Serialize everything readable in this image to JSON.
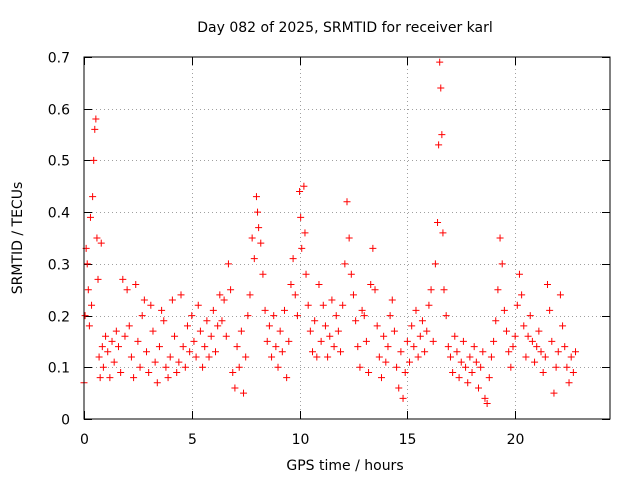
{
  "chart_data": {
    "type": "scatter",
    "title": "Day 082 of 2025, SRMTID for receiver karl",
    "xlabel": "GPS time / hours",
    "ylabel": "SRMTID / TECUs",
    "xlim": [
      0,
      24.4
    ],
    "ylim": [
      0,
      0.7
    ],
    "xticks": [
      0,
      5,
      10,
      15,
      20
    ],
    "yticks": [
      0,
      0.1,
      0.2,
      0.3,
      0.4,
      0.5,
      0.6,
      0.7
    ],
    "xtick_labels": [
      "0",
      "5",
      "10",
      "15",
      "20"
    ],
    "ytick_labels": [
      "0",
      "0.1",
      "0.2",
      "0.3",
      "0.4",
      "0.5",
      "0.6",
      "0.7"
    ],
    "grid": true,
    "marker": "+",
    "color": "#ff0000",
    "series": [
      {
        "name": "SRMTID",
        "points": [
          [
            0.0,
            0.07
          ],
          [
            0.05,
            0.2
          ],
          [
            0.1,
            0.33
          ],
          [
            0.15,
            0.3
          ],
          [
            0.2,
            0.25
          ],
          [
            0.25,
            0.18
          ],
          [
            0.3,
            0.39
          ],
          [
            0.35,
            0.22
          ],
          [
            0.4,
            0.43
          ],
          [
            0.45,
            0.5
          ],
          [
            0.5,
            0.56
          ],
          [
            0.55,
            0.58
          ],
          [
            0.6,
            0.35
          ],
          [
            0.65,
            0.27
          ],
          [
            0.7,
            0.12
          ],
          [
            0.75,
            0.08
          ],
          [
            0.8,
            0.34
          ],
          [
            0.85,
            0.14
          ],
          [
            0.9,
            0.1
          ],
          [
            1.0,
            0.16
          ],
          [
            1.1,
            0.13
          ],
          [
            1.2,
            0.08
          ],
          [
            1.3,
            0.15
          ],
          [
            1.4,
            0.11
          ],
          [
            1.5,
            0.17
          ],
          [
            1.6,
            0.14
          ],
          [
            1.7,
            0.09
          ],
          [
            1.8,
            0.27
          ],
          [
            1.9,
            0.16
          ],
          [
            2.0,
            0.25
          ],
          [
            2.1,
            0.18
          ],
          [
            2.2,
            0.12
          ],
          [
            2.3,
            0.08
          ],
          [
            2.4,
            0.26
          ],
          [
            2.5,
            0.15
          ],
          [
            2.6,
            0.1
          ],
          [
            2.7,
            0.2
          ],
          [
            2.8,
            0.23
          ],
          [
            2.9,
            0.13
          ],
          [
            3.0,
            0.09
          ],
          [
            3.1,
            0.22
          ],
          [
            3.2,
            0.17
          ],
          [
            3.3,
            0.11
          ],
          [
            3.4,
            0.07
          ],
          [
            3.5,
            0.14
          ],
          [
            3.6,
            0.21
          ],
          [
            3.7,
            0.19
          ],
          [
            3.8,
            0.1
          ],
          [
            3.9,
            0.08
          ],
          [
            4.0,
            0.12
          ],
          [
            4.1,
            0.23
          ],
          [
            4.2,
            0.16
          ],
          [
            4.3,
            0.09
          ],
          [
            4.4,
            0.11
          ],
          [
            4.5,
            0.24
          ],
          [
            4.6,
            0.14
          ],
          [
            4.7,
            0.1
          ],
          [
            4.8,
            0.18
          ],
          [
            4.9,
            0.13
          ],
          [
            5.0,
            0.2
          ],
          [
            5.1,
            0.15
          ],
          [
            5.2,
            0.12
          ],
          [
            5.3,
            0.22
          ],
          [
            5.4,
            0.17
          ],
          [
            5.5,
            0.1
          ],
          [
            5.6,
            0.14
          ],
          [
            5.7,
            0.19
          ],
          [
            5.8,
            0.12
          ],
          [
            5.9,
            0.16
          ],
          [
            6.0,
            0.21
          ],
          [
            6.1,
            0.13
          ],
          [
            6.2,
            0.18
          ],
          [
            6.3,
            0.24
          ],
          [
            6.4,
            0.19
          ],
          [
            6.5,
            0.23
          ],
          [
            6.6,
            0.16
          ],
          [
            6.7,
            0.3
          ],
          [
            6.8,
            0.25
          ],
          [
            6.9,
            0.09
          ],
          [
            7.0,
            0.06
          ],
          [
            7.1,
            0.14
          ],
          [
            7.2,
            0.1
          ],
          [
            7.3,
            0.17
          ],
          [
            7.4,
            0.05
          ],
          [
            7.5,
            0.12
          ],
          [
            7.6,
            0.2
          ],
          [
            7.7,
            0.24
          ],
          [
            7.8,
            0.35
          ],
          [
            7.9,
            0.31
          ],
          [
            8.0,
            0.43
          ],
          [
            8.05,
            0.4
          ],
          [
            8.1,
            0.37
          ],
          [
            8.2,
            0.34
          ],
          [
            8.3,
            0.28
          ],
          [
            8.4,
            0.21
          ],
          [
            8.5,
            0.15
          ],
          [
            8.6,
            0.18
          ],
          [
            8.7,
            0.12
          ],
          [
            8.8,
            0.2
          ],
          [
            8.9,
            0.14
          ],
          [
            9.0,
            0.1
          ],
          [
            9.1,
            0.17
          ],
          [
            9.2,
            0.13
          ],
          [
            9.3,
            0.21
          ],
          [
            9.4,
            0.08
          ],
          [
            9.5,
            0.15
          ],
          [
            9.6,
            0.26
          ],
          [
            9.7,
            0.31
          ],
          [
            9.8,
            0.24
          ],
          [
            9.9,
            0.2
          ],
          [
            10.0,
            0.44
          ],
          [
            10.05,
            0.39
          ],
          [
            10.1,
            0.33
          ],
          [
            10.2,
            0.45
          ],
          [
            10.25,
            0.36
          ],
          [
            10.3,
            0.28
          ],
          [
            10.4,
            0.22
          ],
          [
            10.5,
            0.17
          ],
          [
            10.6,
            0.13
          ],
          [
            10.7,
            0.19
          ],
          [
            10.8,
            0.12
          ],
          [
            10.9,
            0.26
          ],
          [
            11.0,
            0.15
          ],
          [
            11.1,
            0.22
          ],
          [
            11.2,
            0.18
          ],
          [
            11.3,
            0.12
          ],
          [
            11.4,
            0.16
          ],
          [
            11.5,
            0.23
          ],
          [
            11.6,
            0.14
          ],
          [
            11.7,
            0.2
          ],
          [
            11.8,
            0.17
          ],
          [
            11.9,
            0.13
          ],
          [
            12.0,
            0.22
          ],
          [
            12.1,
            0.3
          ],
          [
            12.2,
            0.42
          ],
          [
            12.3,
            0.35
          ],
          [
            12.4,
            0.28
          ],
          [
            12.5,
            0.24
          ],
          [
            12.6,
            0.19
          ],
          [
            12.7,
            0.14
          ],
          [
            12.8,
            0.1
          ],
          [
            12.9,
            0.21
          ],
          [
            13.0,
            0.2
          ],
          [
            13.1,
            0.15
          ],
          [
            13.2,
            0.09
          ],
          [
            13.3,
            0.26
          ],
          [
            13.4,
            0.33
          ],
          [
            13.5,
            0.25
          ],
          [
            13.6,
            0.18
          ],
          [
            13.7,
            0.12
          ],
          [
            13.8,
            0.08
          ],
          [
            13.9,
            0.16
          ],
          [
            14.0,
            0.11
          ],
          [
            14.1,
            0.14
          ],
          [
            14.2,
            0.2
          ],
          [
            14.3,
            0.23
          ],
          [
            14.4,
            0.17
          ],
          [
            14.5,
            0.1
          ],
          [
            14.6,
            0.06
          ],
          [
            14.7,
            0.13
          ],
          [
            14.8,
            0.04
          ],
          [
            14.9,
            0.09
          ],
          [
            15.0,
            0.15
          ],
          [
            15.1,
            0.11
          ],
          [
            15.2,
            0.18
          ],
          [
            15.3,
            0.14
          ],
          [
            15.4,
            0.21
          ],
          [
            15.5,
            0.12
          ],
          [
            15.6,
            0.16
          ],
          [
            15.7,
            0.19
          ],
          [
            15.8,
            0.13
          ],
          [
            15.9,
            0.17
          ],
          [
            16.0,
            0.22
          ],
          [
            16.1,
            0.25
          ],
          [
            16.2,
            0.15
          ],
          [
            16.3,
            0.3
          ],
          [
            16.4,
            0.38
          ],
          [
            16.45,
            0.53
          ],
          [
            16.5,
            0.69
          ],
          [
            16.55,
            0.64
          ],
          [
            16.6,
            0.55
          ],
          [
            16.65,
            0.36
          ],
          [
            16.7,
            0.25
          ],
          [
            16.8,
            0.2
          ],
          [
            16.9,
            0.14
          ],
          [
            17.0,
            0.12
          ],
          [
            17.1,
            0.09
          ],
          [
            17.2,
            0.16
          ],
          [
            17.3,
            0.13
          ],
          [
            17.4,
            0.08
          ],
          [
            17.5,
            0.11
          ],
          [
            17.6,
            0.15
          ],
          [
            17.7,
            0.1
          ],
          [
            17.8,
            0.07
          ],
          [
            17.9,
            0.12
          ],
          [
            18.0,
            0.09
          ],
          [
            18.1,
            0.14
          ],
          [
            18.2,
            0.11
          ],
          [
            18.3,
            0.06
          ],
          [
            18.4,
            0.1
          ],
          [
            18.5,
            0.13
          ],
          [
            18.6,
            0.04
          ],
          [
            18.7,
            0.03
          ],
          [
            18.8,
            0.08
          ],
          [
            18.9,
            0.12
          ],
          [
            19.0,
            0.15
          ],
          [
            19.1,
            0.19
          ],
          [
            19.2,
            0.25
          ],
          [
            19.3,
            0.35
          ],
          [
            19.4,
            0.3
          ],
          [
            19.5,
            0.21
          ],
          [
            19.6,
            0.17
          ],
          [
            19.7,
            0.13
          ],
          [
            19.8,
            0.1
          ],
          [
            19.9,
            0.14
          ],
          [
            20.0,
            0.16
          ],
          [
            20.1,
            0.22
          ],
          [
            20.2,
            0.28
          ],
          [
            20.3,
            0.24
          ],
          [
            20.4,
            0.18
          ],
          [
            20.5,
            0.12
          ],
          [
            20.6,
            0.16
          ],
          [
            20.7,
            0.2
          ],
          [
            20.8,
            0.15
          ],
          [
            20.9,
            0.11
          ],
          [
            21.0,
            0.14
          ],
          [
            21.1,
            0.17
          ],
          [
            21.2,
            0.13
          ],
          [
            21.3,
            0.09
          ],
          [
            21.4,
            0.12
          ],
          [
            21.5,
            0.26
          ],
          [
            21.6,
            0.21
          ],
          [
            21.7,
            0.15
          ],
          [
            21.8,
            0.05
          ],
          [
            21.9,
            0.1
          ],
          [
            22.0,
            0.13
          ],
          [
            22.1,
            0.24
          ],
          [
            22.2,
            0.18
          ],
          [
            22.3,
            0.14
          ],
          [
            22.4,
            0.1
          ],
          [
            22.5,
            0.07
          ],
          [
            22.6,
            0.12
          ],
          [
            22.7,
            0.09
          ],
          [
            22.8,
            0.13
          ]
        ]
      }
    ]
  }
}
